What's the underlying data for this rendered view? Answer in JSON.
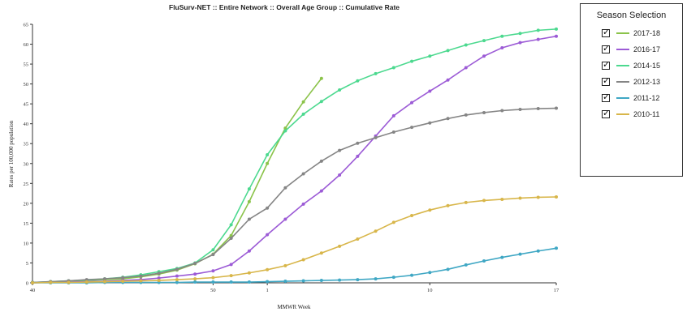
{
  "chart_data": {
    "type": "line",
    "title": "FluSurv-NET :: Entire Network :: Overall Age Group :: Cumulative Rate",
    "xlabel": "MMWR Week",
    "ylabel": "Rates per 100,000 population",
    "x_ticks": [
      "40",
      "50",
      "1",
      "10",
      "17"
    ],
    "ylim": [
      0,
      65
    ],
    "y_ticks": [
      0,
      5,
      10,
      15,
      20,
      25,
      30,
      35,
      40,
      45,
      50,
      55,
      60,
      65
    ],
    "grid": false,
    "x_week_order": [
      "40",
      "41",
      "42",
      "43",
      "44",
      "45",
      "46",
      "47",
      "48",
      "49",
      "50",
      "51",
      "52",
      "1",
      "2",
      "3",
      "4",
      "5",
      "6",
      "7",
      "8",
      "9",
      "10",
      "11",
      "12",
      "13",
      "14",
      "15",
      "16",
      "17"
    ],
    "series": [
      {
        "name": "2017-18",
        "color": "#8bc34a",
        "values": [
          0.1,
          0.2,
          0.4,
          0.6,
          0.8,
          1.0,
          1.5,
          2.2,
          3.2,
          4.8,
          7.2,
          11.9,
          20.4,
          30.0,
          38.9,
          45.5,
          51.4
        ]
      },
      {
        "name": "2016-17",
        "color": "#9c5bd6",
        "values": [
          0.0,
          0.1,
          0.2,
          0.3,
          0.4,
          0.6,
          0.8,
          1.2,
          1.7,
          2.2,
          3.0,
          4.6,
          8.0,
          12.1,
          16.0,
          19.8,
          23.1,
          27.1,
          31.8,
          36.9,
          42.0,
          45.3,
          48.2,
          51.0,
          54.1,
          57.0,
          59.1,
          60.4,
          61.2,
          62.0
        ]
      },
      {
        "name": "2014-15",
        "color": "#4cd98f",
        "values": [
          0.1,
          0.3,
          0.5,
          0.7,
          1.0,
          1.4,
          2.0,
          2.8,
          3.6,
          5.0,
          8.3,
          14.6,
          23.6,
          32.2,
          38.2,
          42.4,
          45.6,
          48.5,
          50.8,
          52.6,
          54.1,
          55.7,
          57.0,
          58.4,
          59.8,
          60.9,
          62.0,
          62.7,
          63.5,
          63.8
        ]
      },
      {
        "name": "2012-13",
        "color": "#858585",
        "values": [
          0.1,
          0.3,
          0.5,
          0.8,
          1.0,
          1.3,
          1.7,
          2.4,
          3.4,
          4.9,
          7.1,
          11.2,
          16.0,
          18.8,
          23.9,
          27.4,
          30.6,
          33.3,
          35.1,
          36.5,
          37.9,
          39.1,
          40.2,
          41.3,
          42.2,
          42.8,
          43.3,
          43.6,
          43.8,
          43.9
        ]
      },
      {
        "name": "2011-12",
        "color": "#3fa7c4",
        "values": [
          0.0,
          0.0,
          0.0,
          0.0,
          0.1,
          0.1,
          0.1,
          0.1,
          0.1,
          0.2,
          0.2,
          0.2,
          0.2,
          0.3,
          0.4,
          0.5,
          0.6,
          0.7,
          0.8,
          1.0,
          1.4,
          1.9,
          2.6,
          3.4,
          4.5,
          5.5,
          6.4,
          7.2,
          8.0,
          8.7
        ]
      },
      {
        "name": "2010-11",
        "color": "#d8b64a",
        "values": [
          0.0,
          0.1,
          0.1,
          0.2,
          0.3,
          0.4,
          0.5,
          0.6,
          0.8,
          1.0,
          1.3,
          1.8,
          2.5,
          3.3,
          4.3,
          5.8,
          7.5,
          9.2,
          11.0,
          13.0,
          15.2,
          16.9,
          18.3,
          19.4,
          20.2,
          20.7,
          21.0,
          21.3,
          21.5,
          21.6
        ]
      }
    ],
    "legend": {
      "title": "Season Selection",
      "placement": "right"
    }
  }
}
